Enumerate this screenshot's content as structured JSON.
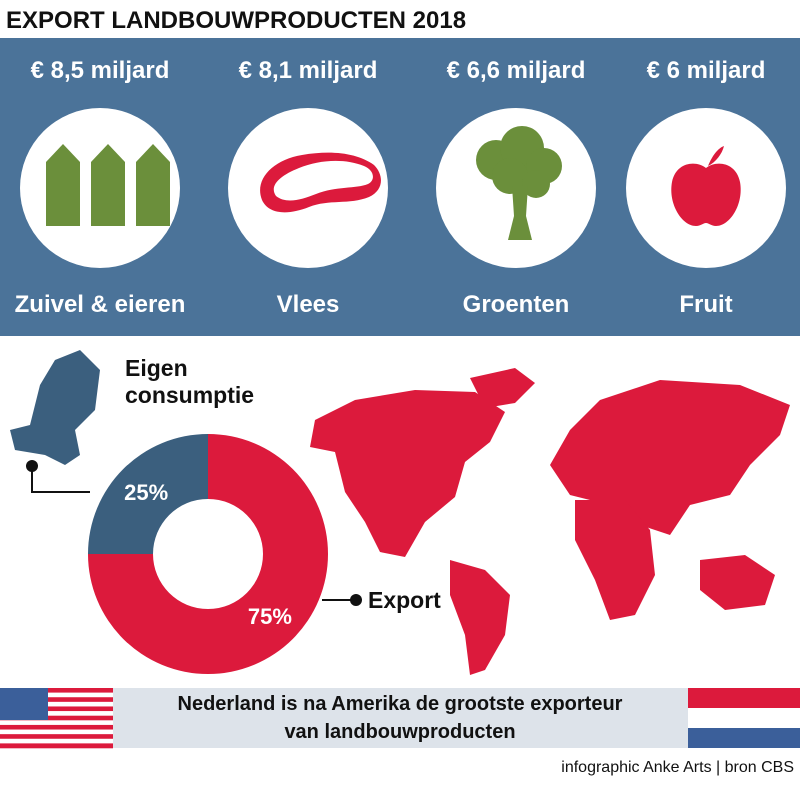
{
  "title": "EXPORT LANDBOUWPRODUCTEN 2018",
  "products": [
    {
      "amount": "€ 8,5 miljard",
      "label": "Zuivel & eieren"
    },
    {
      "amount": "€ 8,1 miljard",
      "label": "Vlees"
    },
    {
      "amount": "€ 6,6 miljard",
      "label": "Groenten"
    },
    {
      "amount": "€ 6 miljard",
      "label": "Fruit"
    }
  ],
  "chart_data": {
    "type": "donut",
    "categories": [
      "Eigen consumptie",
      "Export"
    ],
    "values": [
      25,
      75
    ],
    "value_labels": [
      "25%",
      "75%"
    ],
    "colors": [
      "#3b5f7e",
      "#dc1a3c"
    ]
  },
  "banner": [
    "Nederland is na Amerika de grootste exporteur",
    "van landbouwproducten"
  ],
  "source": "infographic Anke Arts | bron CBS"
}
